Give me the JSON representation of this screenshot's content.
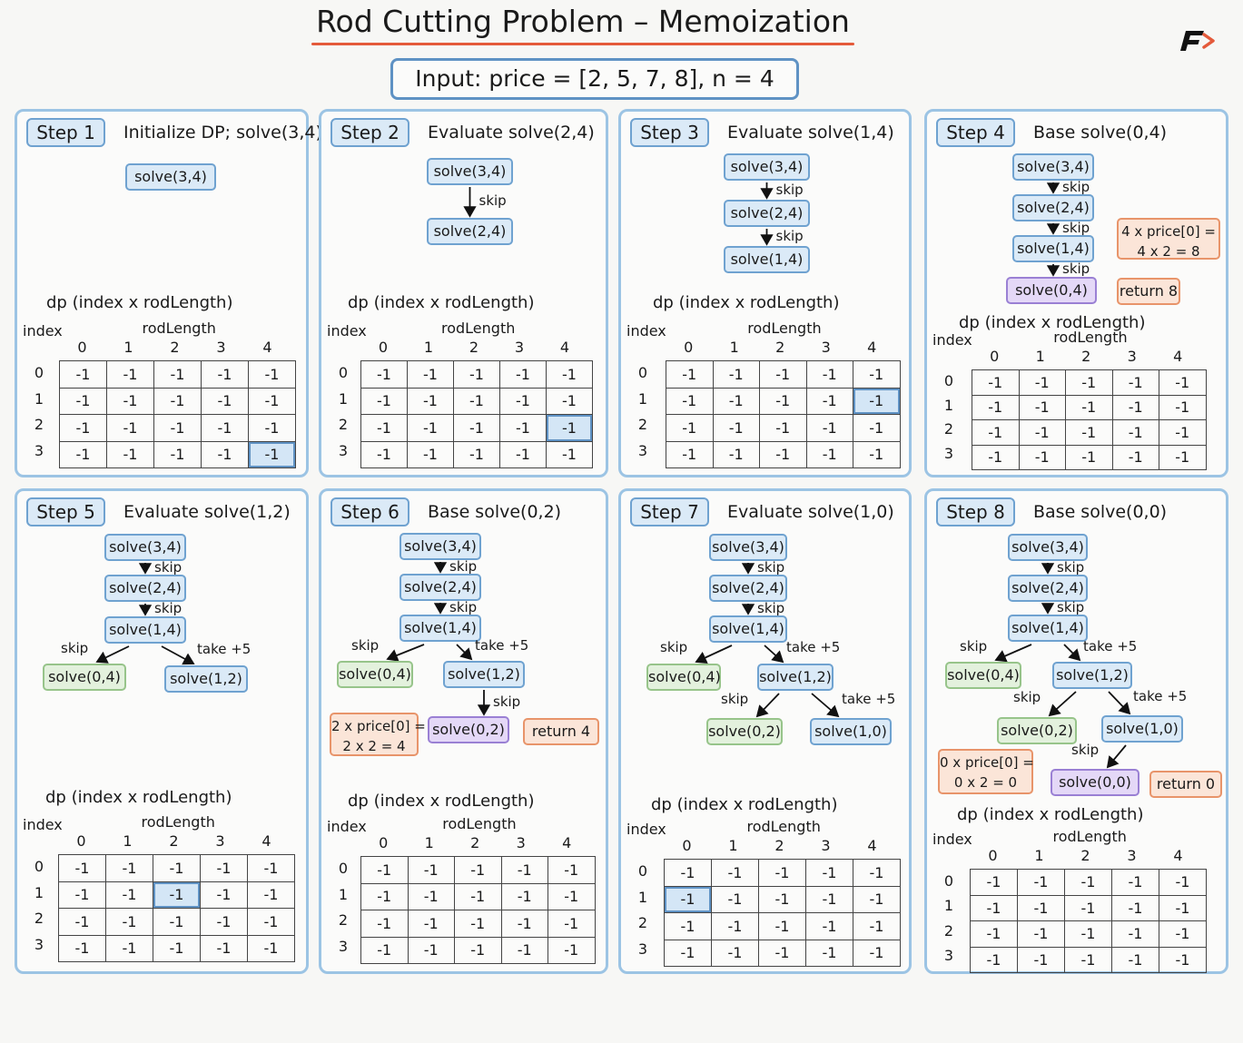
{
  "title": "Rod Cutting Problem – Memoization",
  "input": "Input:  price = [2, 5, 7, 8], n = 4",
  "dp_title": "dp  (index x rodLength)",
  "index_label": "index",
  "rodlength_label": "rodLength",
  "col_headers": [
    "0",
    "1",
    "2",
    "3",
    "4"
  ],
  "row_headers": [
    "0",
    "1",
    "2",
    "3"
  ],
  "panels": [
    {
      "label": "Step 1",
      "desc": "Initialize DP; solve(3,4)",
      "nodes": [
        {
          "t": "solve(3,4)",
          "k": "recur"
        }
      ],
      "edges": [],
      "calcs": [],
      "dp": {
        "rows": [
          [
            "-1",
            "-1",
            "-1",
            "-1",
            "-1"
          ],
          [
            "-1",
            "-1",
            "-1",
            "-1",
            "-1"
          ],
          [
            "-1",
            "-1",
            "-1",
            "-1",
            "-1"
          ],
          [
            "-1",
            "-1",
            "-1",
            "-1",
            "-1"
          ]
        ],
        "highlight": [
          3,
          4
        ]
      }
    },
    {
      "label": "Step 2",
      "desc": "Evaluate solve(2,4)",
      "nodes": [
        {
          "t": "solve(3,4)",
          "k": "recur"
        },
        {
          "t": "solve(2,4)",
          "k": "recur"
        }
      ],
      "edges": [
        {
          "label": "skip"
        }
      ],
      "calcs": [],
      "dp": {
        "rows": [
          [
            "-1",
            "-1",
            "-1",
            "-1",
            "-1"
          ],
          [
            "-1",
            "-1",
            "-1",
            "-1",
            "-1"
          ],
          [
            "-1",
            "-1",
            "-1",
            "-1",
            "-1"
          ],
          [
            "-1",
            "-1",
            "-1",
            "-1",
            "-1"
          ]
        ],
        "highlight": [
          2,
          4
        ]
      }
    },
    {
      "label": "Step 3",
      "desc": "Evaluate solve(1,4)",
      "nodes": [
        {
          "t": "solve(3,4)",
          "k": "recur"
        },
        {
          "t": "solve(2,4)",
          "k": "recur"
        },
        {
          "t": "solve(1,4)",
          "k": "recur"
        }
      ],
      "edges": [
        {
          "label": "skip"
        },
        {
          "label": "skip"
        }
      ],
      "calcs": [],
      "dp": {
        "rows": [
          [
            "-1",
            "-1",
            "-1",
            "-1",
            "-1"
          ],
          [
            "-1",
            "-1",
            "-1",
            "-1",
            "-1"
          ],
          [
            "-1",
            "-1",
            "-1",
            "-1",
            "-1"
          ],
          [
            "-1",
            "-1",
            "-1",
            "-1",
            "-1"
          ]
        ],
        "highlight": [
          1,
          4
        ]
      }
    },
    {
      "label": "Step 4",
      "desc": "Base solve(0,4)",
      "nodes": [
        {
          "t": "solve(3,4)",
          "k": "recur"
        },
        {
          "t": "solve(2,4)",
          "k": "recur"
        },
        {
          "t": "solve(1,4)",
          "k": "recur"
        },
        {
          "t": "solve(0,4)",
          "k": "base"
        },
        {
          "t": "return 8",
          "k": "ret"
        }
      ],
      "edges": [
        {
          "label": "skip"
        },
        {
          "label": "skip"
        },
        {
          "label": "skip"
        }
      ],
      "calcs": [
        {
          "l1": "4 x price[0] =",
          "l2": "4 x 2 = 8"
        }
      ],
      "dp": {
        "rows": [
          [
            "-1",
            "-1",
            "-1",
            "-1",
            "-1"
          ],
          [
            "-1",
            "-1",
            "-1",
            "-1",
            "-1"
          ],
          [
            "-1",
            "-1",
            "-1",
            "-1",
            "-1"
          ],
          [
            "-1",
            "-1",
            "-1",
            "-1",
            "-1"
          ]
        ],
        "highlight": null
      }
    },
    {
      "label": "Step 5",
      "desc": "Evaluate solve(1,2)",
      "nodes": [
        {
          "t": "solve(3,4)",
          "k": "recur"
        },
        {
          "t": "solve(2,4)",
          "k": "recur"
        },
        {
          "t": "solve(1,4)",
          "k": "recur"
        },
        {
          "t": "solve(0,4)",
          "k": "skipped"
        },
        {
          "t": "solve(1,2)",
          "k": "recur"
        }
      ],
      "edges": [
        {
          "label": "skip"
        },
        {
          "label": "skip"
        },
        {
          "label": "skip"
        },
        {
          "label": "take +5"
        }
      ],
      "calcs": [],
      "dp": {
        "rows": [
          [
            "-1",
            "-1",
            "-1",
            "-1",
            "-1"
          ],
          [
            "-1",
            "-1",
            "-1",
            "-1",
            "-1"
          ],
          [
            "-1",
            "-1",
            "-1",
            "-1",
            "-1"
          ],
          [
            "-1",
            "-1",
            "-1",
            "-1",
            "-1"
          ]
        ],
        "highlight": [
          1,
          2
        ]
      }
    },
    {
      "label": "Step 6",
      "desc": "Base solve(0,2)",
      "nodes": [
        {
          "t": "solve(3,4)",
          "k": "recur"
        },
        {
          "t": "solve(2,4)",
          "k": "recur"
        },
        {
          "t": "solve(1,4)",
          "k": "recur"
        },
        {
          "t": "solve(0,4)",
          "k": "skipped"
        },
        {
          "t": "solve(1,2)",
          "k": "recur"
        },
        {
          "t": "solve(0,2)",
          "k": "base"
        },
        {
          "t": "return 4",
          "k": "ret"
        }
      ],
      "edges": [
        {
          "label": "skip"
        },
        {
          "label": "skip"
        },
        {
          "label": "skip"
        },
        {
          "label": "take +5"
        },
        {
          "label": "skip"
        }
      ],
      "calcs": [
        {
          "l1": "2 x price[0] =",
          "l2": "2 x 2 = 4"
        }
      ],
      "dp": {
        "rows": [
          [
            "-1",
            "-1",
            "-1",
            "-1",
            "-1"
          ],
          [
            "-1",
            "-1",
            "-1",
            "-1",
            "-1"
          ],
          [
            "-1",
            "-1",
            "-1",
            "-1",
            "-1"
          ],
          [
            "-1",
            "-1",
            "-1",
            "-1",
            "-1"
          ]
        ],
        "highlight": null
      }
    },
    {
      "label": "Step 7",
      "desc": "Evaluate solve(1,0)",
      "nodes": [
        {
          "t": "solve(3,4)",
          "k": "recur"
        },
        {
          "t": "solve(2,4)",
          "k": "recur"
        },
        {
          "t": "solve(1,4)",
          "k": "recur"
        },
        {
          "t": "solve(0,4)",
          "k": "skipped"
        },
        {
          "t": "solve(1,2)",
          "k": "recur"
        },
        {
          "t": "solve(0,2)",
          "k": "skipped"
        },
        {
          "t": "solve(1,0)",
          "k": "recur"
        }
      ],
      "edges": [
        {
          "label": "skip"
        },
        {
          "label": "skip"
        },
        {
          "label": "skip"
        },
        {
          "label": "take +5"
        },
        {
          "label": "skip"
        },
        {
          "label": "take +5"
        }
      ],
      "calcs": [],
      "dp": {
        "rows": [
          [
            "-1",
            "-1",
            "-1",
            "-1",
            "-1"
          ],
          [
            "-1",
            "-1",
            "-1",
            "-1",
            "-1"
          ],
          [
            "-1",
            "-1",
            "-1",
            "-1",
            "-1"
          ],
          [
            "-1",
            "-1",
            "-1",
            "-1",
            "-1"
          ]
        ],
        "highlight": [
          1,
          0
        ]
      }
    },
    {
      "label": "Step 8",
      "desc": "Base solve(0,0)",
      "nodes": [
        {
          "t": "solve(3,4)",
          "k": "recur"
        },
        {
          "t": "solve(2,4)",
          "k": "recur"
        },
        {
          "t": "solve(1,4)",
          "k": "recur"
        },
        {
          "t": "solve(0,4)",
          "k": "skipped"
        },
        {
          "t": "solve(1,2)",
          "k": "recur"
        },
        {
          "t": "solve(0,2)",
          "k": "skipped"
        },
        {
          "t": "solve(1,0)",
          "k": "recur"
        },
        {
          "t": "solve(0,0)",
          "k": "base"
        },
        {
          "t": "return 0",
          "k": "ret"
        }
      ],
      "edges": [
        {
          "label": "skip"
        },
        {
          "label": "skip"
        },
        {
          "label": "skip"
        },
        {
          "label": "take +5"
        },
        {
          "label": "skip"
        },
        {
          "label": "take +5"
        },
        {
          "label": "skip"
        }
      ],
      "calcs": [
        {
          "l1": "0 x price[0] =",
          "l2": "0 x 2 = 0"
        }
      ],
      "dp": {
        "rows": [
          [
            "-1",
            "-1",
            "-1",
            "-1",
            "-1"
          ],
          [
            "-1",
            "-1",
            "-1",
            "-1",
            "-1"
          ],
          [
            "-1",
            "-1",
            "-1",
            "-1",
            "-1"
          ],
          [
            "-1",
            "-1",
            "-1",
            "-1",
            "-1"
          ]
        ],
        "highlight": null
      }
    }
  ]
}
